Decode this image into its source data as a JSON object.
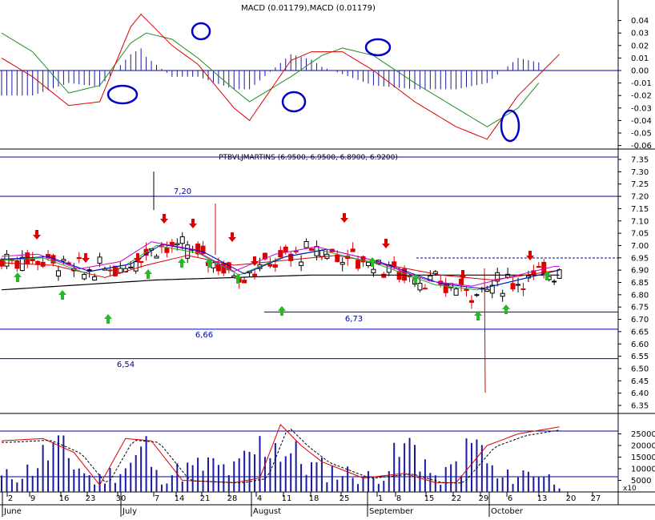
{
  "macd_panel": {
    "title": "MACD (0.01179),MACD (0.01179)",
    "y_ticks": [
      "0.04",
      "0.03",
      "0.02",
      "0.01",
      "0.00",
      "-0.01",
      "-0.02",
      "-0.03",
      "-0.04",
      "-0.05",
      "-0.06"
    ]
  },
  "price_panel": {
    "title": "PTBVLJMARTINS (6.9500, 6.9500, 6.8900, 6.9200)",
    "y_ticks": [
      "7.35",
      "7.30",
      "7.25",
      "7.20",
      "7.15",
      "7.10",
      "7.05",
      "7.00",
      "6.95",
      "6.90",
      "6.85",
      "6.80",
      "6.75",
      "6.70",
      "6.65",
      "6.60",
      "6.55",
      "6.50",
      "6.45",
      "6.40",
      "6.35"
    ],
    "levels": [
      {
        "label": "7,20",
        "value": 7.2
      },
      {
        "label": "6,73",
        "value": 6.73
      },
      {
        "label": "6,66",
        "value": 6.66
      },
      {
        "label": "6,54",
        "value": 6.54
      }
    ]
  },
  "volume_panel": {
    "y_ticks": [
      "25000",
      "20000",
      "15000",
      "10000",
      "5000"
    ],
    "multiplier": "x10"
  },
  "x_axis": {
    "day_ticks": [
      "2",
      "9",
      "16",
      "23",
      "30",
      "7",
      "14",
      "21",
      "28",
      "4",
      "11",
      "18",
      "25",
      "1",
      "8",
      "15",
      "22",
      "29",
      "6",
      "13",
      "20",
      "27"
    ],
    "months": [
      "June",
      "July",
      "August",
      "September",
      "October"
    ]
  },
  "colors": {
    "up_arrow": "#22bb22",
    "down_arrow": "#dd0000",
    "hline": "#0000aa",
    "histogram": "#1a1aa0",
    "macd_line": "#dd0000",
    "signal_line": "#228b22",
    "candle": "#000000",
    "down_candle": "#dd0000",
    "ma_black": "#000000",
    "ma_red": "#dd0000",
    "ma_green": "#22aa22",
    "ma_blue": "#0000cc",
    "ma_magenta": "#cc00cc",
    "ellipse": "#0000cc"
  },
  "chart_data": [
    {
      "type": "line",
      "title": "MACD (0.01179),MACD (0.01179)",
      "x_range": [
        "2008-06-02",
        "2008-10-16"
      ],
      "ylim": [
        -0.06,
        0.05
      ],
      "series": [
        {
          "values": [
            [
              0,
              0.01
            ],
            [
              6,
              -0.005
            ],
            [
              13,
              -0.028
            ],
            [
              19,
              -0.025
            ],
            [
              25,
              0.035
            ],
            [
              27,
              0.045
            ],
            [
              33,
              0.02
            ],
            [
              38,
              0.005
            ],
            [
              45,
              -0.03
            ],
            [
              48,
              -0.04
            ],
            [
              56,
              0.008
            ],
            [
              60,
              0.015
            ],
            [
              66,
              0.015
            ],
            [
              72,
              0.0
            ],
            [
              80,
              -0.025
            ],
            [
              88,
              -0.045
            ],
            [
              94,
              -0.055
            ],
            [
              100,
              -0.02
            ],
            [
              108,
              0.013
            ]
          ]
        },
        {
          "values": [
            [
              0,
              0.03
            ],
            [
              6,
              0.015
            ],
            [
              13,
              -0.018
            ],
            [
              19,
              -0.012
            ],
            [
              25,
              0.022
            ],
            [
              28,
              0.03
            ],
            [
              33,
              0.025
            ],
            [
              38,
              0.01
            ],
            [
              45,
              -0.015
            ],
            [
              48,
              -0.025
            ],
            [
              56,
              -0.005
            ],
            [
              62,
              0.012
            ],
            [
              66,
              0.018
            ],
            [
              72,
              0.012
            ],
            [
              80,
              -0.01
            ],
            [
              88,
              -0.03
            ],
            [
              94,
              -0.045
            ],
            [
              100,
              -0.03
            ],
            [
              104,
              -0.01
            ]
          ]
        }
      ]
    },
    {
      "type": "candlestick",
      "title": "PTBVLJMARTINS (6.9500, 6.9500, 6.8900, 6.9200)",
      "ylim": [
        6.3,
        7.4
      ],
      "reference_lines": [
        7.2,
        6.73,
        6.66,
        6.54
      ],
      "last_close": 6.92,
      "moving_averages": [
        {
          "values": [
            [
              0,
              6.82
            ],
            [
              15,
              6.84
            ],
            [
              30,
              6.86
            ],
            [
              45,
              6.87
            ],
            [
              60,
              6.88
            ],
            [
              75,
              6.88
            ],
            [
              90,
              6.88
            ],
            [
              108,
              6.88
            ]
          ]
        },
        {
          "values": [
            [
              0,
              6.93
            ],
            [
              10,
              6.92
            ],
            [
              20,
              6.87
            ],
            [
              28,
              6.92
            ],
            [
              36,
              6.96
            ],
            [
              45,
              6.92
            ],
            [
              55,
              6.94
            ],
            [
              65,
              6.96
            ],
            [
              75,
              6.92
            ],
            [
              85,
              6.88
            ],
            [
              95,
              6.86
            ],
            [
              108,
              6.9
            ]
          ]
        },
        {
          "values": [
            [
              0,
              6.94
            ],
            [
              8,
              6.95
            ],
            [
              16,
              6.89
            ],
            [
              24,
              6.92
            ],
            [
              30,
              7.0
            ],
            [
              38,
              6.97
            ],
            [
              46,
              6.88
            ],
            [
              54,
              6.95
            ],
            [
              62,
              6.98
            ],
            [
              72,
              6.93
            ],
            [
              84,
              6.84
            ],
            [
              92,
              6.82
            ],
            [
              108,
              6.9
            ]
          ]
        }
      ]
    },
    {
      "type": "bar",
      "ylim": [
        0,
        30000
      ],
      "series": [
        {
          "values": [
            [
              0,
              8000
            ],
            [
              5,
              12000
            ],
            [
              10,
              25000
            ],
            [
              14,
              17000
            ],
            [
              18,
              6000
            ],
            [
              25,
              16000
            ],
            [
              28,
              25000
            ],
            [
              30,
              9000
            ],
            [
              40,
              15000
            ],
            [
              45,
              12000
            ],
            [
              52,
              30000
            ],
            [
              60,
              14000
            ],
            [
              72,
              8000
            ],
            [
              80,
              28000
            ],
            [
              84,
              6000
            ],
            [
              87,
              12000
            ],
            [
              92,
              28000
            ],
            [
              96,
              7000
            ],
            [
              100,
              10000
            ],
            [
              104,
              12000
            ],
            [
              108,
              4000
            ]
          ]
        },
        {
          "values": [
            [
              0,
              22000
            ],
            [
              8,
              23000
            ],
            [
              14,
              17000
            ],
            [
              19,
              3000
            ],
            [
              24,
              23000
            ],
            [
              29,
              22000
            ],
            [
              35,
              5000
            ],
            [
              45,
              4000
            ],
            [
              50,
              6000
            ],
            [
              54,
              29000
            ],
            [
              58,
              20000
            ],
            [
              62,
              13000
            ],
            [
              70,
              6000
            ],
            [
              78,
              8000
            ],
            [
              84,
              4000
            ],
            [
              88,
              4000
            ],
            [
              94,
              20000
            ],
            [
              100,
              25000
            ],
            [
              108,
              28000
            ]
          ]
        }
      ]
    }
  ]
}
